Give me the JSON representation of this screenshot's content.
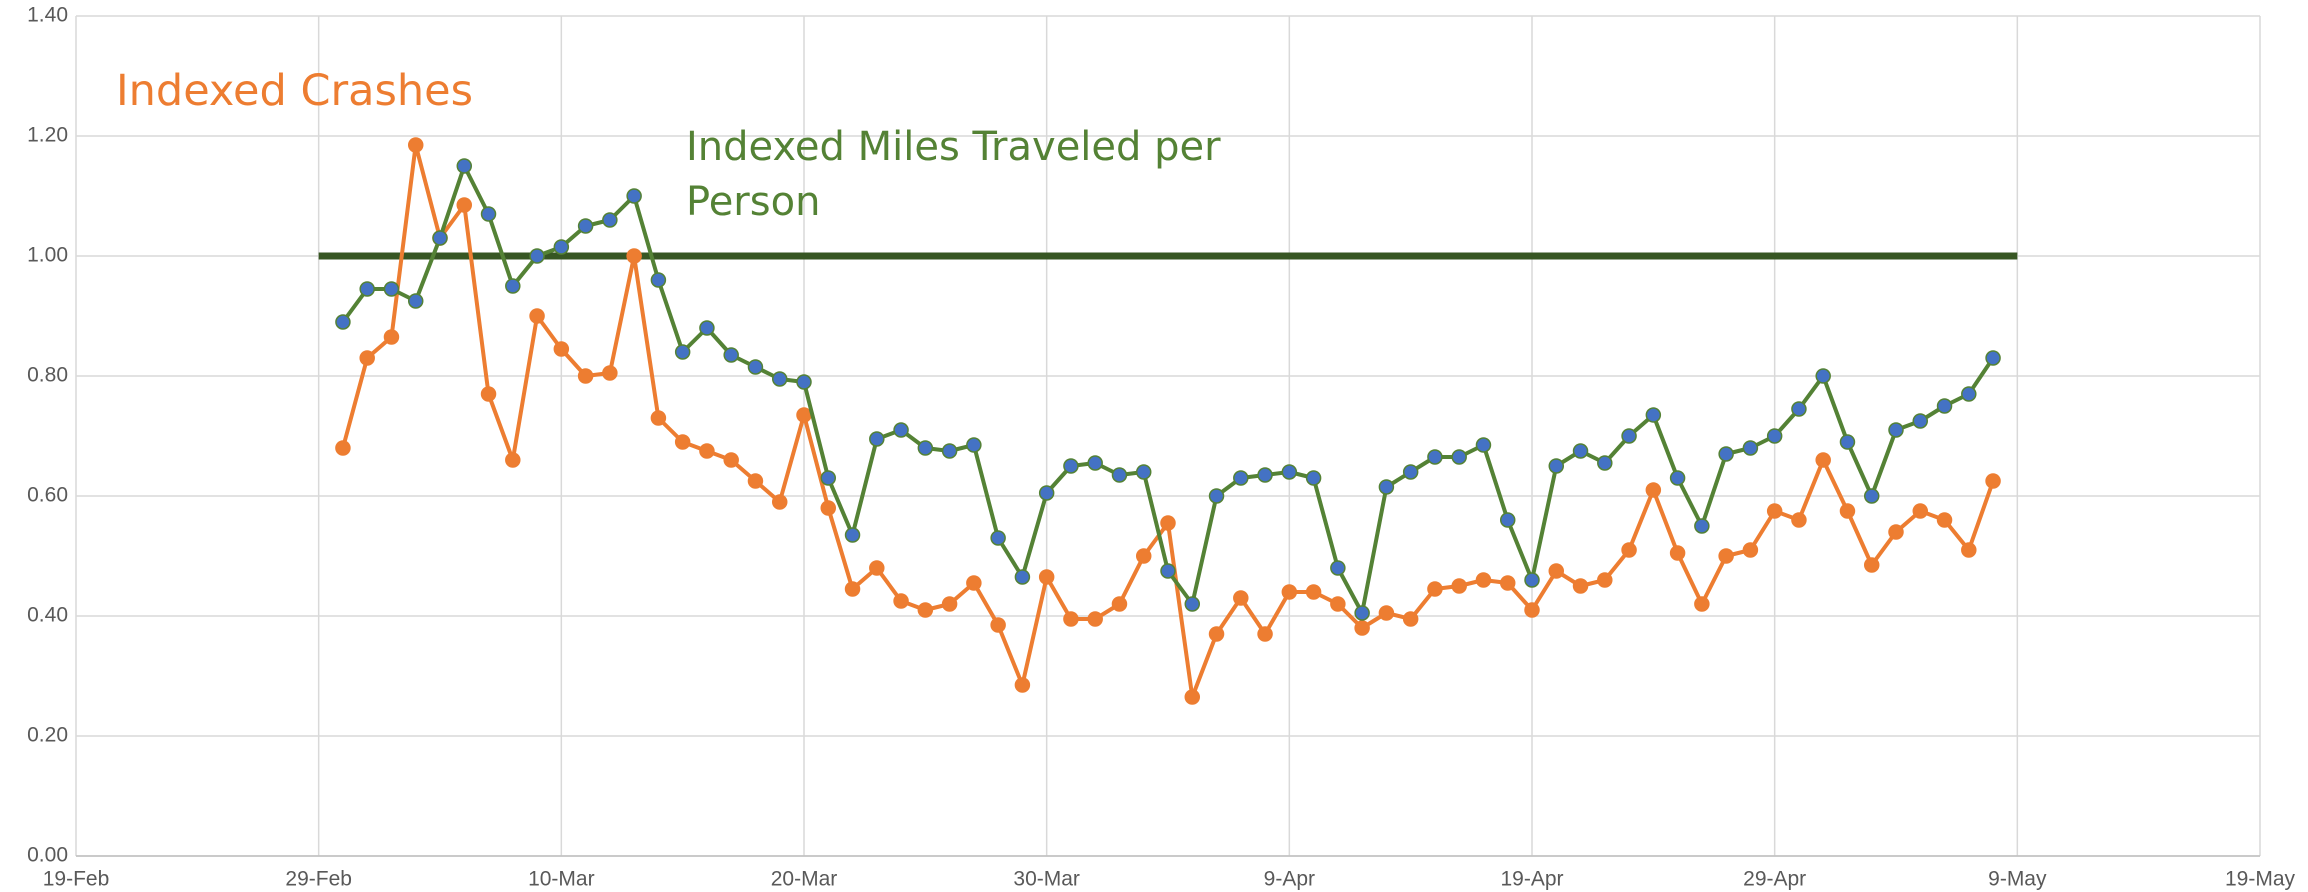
{
  "chart_data": {
    "type": "line",
    "x": [
      "1-Mar",
      "2-Mar",
      "3-Mar",
      "4-Mar",
      "5-Mar",
      "6-Mar",
      "7-Mar",
      "8-Mar",
      "9-Mar",
      "10-Mar",
      "11-Mar",
      "12-Mar",
      "13-Mar",
      "14-Mar",
      "15-Mar",
      "16-Mar",
      "17-Mar",
      "18-Mar",
      "19-Mar",
      "20-Mar",
      "21-Mar",
      "22-Mar",
      "23-Mar",
      "24-Mar",
      "25-Mar",
      "26-Mar",
      "27-Mar",
      "28-Mar",
      "29-Mar",
      "30-Mar",
      "31-Mar",
      "1-Apr",
      "2-Apr",
      "3-Apr",
      "4-Apr",
      "5-Apr",
      "6-Apr",
      "7-Apr",
      "8-Apr",
      "9-Apr",
      "10-Apr",
      "11-Apr",
      "12-Apr",
      "13-Apr",
      "14-Apr",
      "15-Apr",
      "16-Apr",
      "17-Apr",
      "18-Apr",
      "19-Apr",
      "20-Apr",
      "21-Apr",
      "22-Apr",
      "23-Apr",
      "24-Apr",
      "25-Apr",
      "26-Apr",
      "27-Apr",
      "28-Apr",
      "29-Apr",
      "30-Apr",
      "1-May",
      "2-May",
      "3-May",
      "4-May",
      "5-May",
      "6-May",
      "7-May",
      "8-May"
    ],
    "series": [
      {
        "name": "Indexed Crashes",
        "color": "#ed7d31",
        "marker_color": "#ed7d31",
        "values": [
          0.68,
          0.83,
          0.865,
          1.185,
          1.03,
          1.085,
          0.77,
          0.66,
          0.9,
          0.845,
          0.8,
          0.805,
          1.0,
          0.73,
          0.69,
          0.675,
          0.66,
          0.625,
          0.59,
          0.735,
          0.58,
          0.445,
          0.48,
          0.425,
          0.41,
          0.42,
          0.455,
          0.385,
          0.285,
          0.465,
          0.395,
          0.395,
          0.42,
          0.5,
          0.555,
          0.265,
          0.37,
          0.43,
          0.37,
          0.44,
          0.44,
          0.42,
          0.38,
          0.405,
          0.395,
          0.445,
          0.45,
          0.46,
          0.455,
          0.41,
          0.475,
          0.45,
          0.46,
          0.51,
          0.61,
          0.505,
          0.42,
          0.5,
          0.51,
          0.575,
          0.56,
          0.66,
          0.575,
          0.485,
          0.54,
          0.575,
          0.56,
          0.51,
          0.625
        ]
      },
      {
        "name": "Indexed Miles Traveled per Person",
        "color": "#548235",
        "marker_color": "#4472c4",
        "values": [
          0.89,
          0.945,
          0.945,
          0.925,
          1.03,
          1.15,
          1.07,
          0.95,
          1.0,
          1.015,
          1.05,
          1.06,
          1.1,
          0.96,
          0.84,
          0.88,
          0.835,
          0.815,
          0.795,
          0.79,
          0.63,
          0.535,
          0.695,
          0.71,
          0.68,
          0.675,
          0.685,
          0.53,
          0.465,
          0.605,
          0.65,
          0.655,
          0.635,
          0.64,
          0.475,
          0.42,
          0.6,
          0.63,
          0.635,
          0.64,
          0.63,
          0.48,
          0.405,
          0.615,
          0.64,
          0.665,
          0.665,
          0.685,
          0.56,
          0.46,
          0.65,
          0.675,
          0.655,
          0.7,
          0.735,
          0.63,
          0.55,
          0.67,
          0.68,
          0.7,
          0.745,
          0.8,
          0.69,
          0.6,
          0.71,
          0.725,
          0.75,
          0.77,
          0.83
        ]
      }
    ],
    "reference_line": {
      "value": 1.0,
      "x": [
        "29-Feb",
        "9-May"
      ],
      "color": "#375623"
    },
    "xlim": [
      "19-Feb",
      "19-May"
    ],
    "xticks": [
      "19-Feb",
      "29-Feb",
      "10-Mar",
      "20-Mar",
      "30-Mar",
      "9-Apr",
      "19-Apr",
      "29-Apr",
      "9-May",
      "19-May"
    ],
    "ylim": [
      0,
      1.4
    ],
    "yticks": [
      {
        "value": 0,
        "label": "0.00"
      },
      {
        "value": 0.2,
        "label": "0.20"
      },
      {
        "value": 0.4,
        "label": "0.40"
      },
      {
        "value": 0.6,
        "label": "0.60"
      },
      {
        "value": 0.8,
        "label": "0.80"
      },
      {
        "value": 1.0,
        "label": "1.00"
      },
      {
        "value": 1.2,
        "label": "1.20"
      },
      {
        "value": 1.4,
        "label": "1.40"
      }
    ],
    "grid": true
  }
}
